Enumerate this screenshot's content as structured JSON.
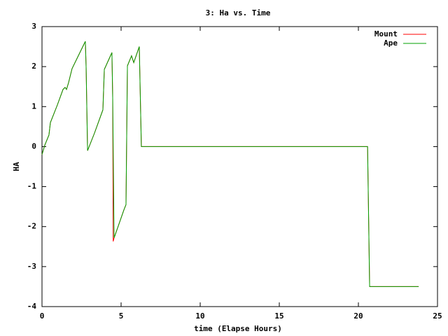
{
  "chart_data": {
    "type": "line",
    "title": "3: Ha vs. Time",
    "xlabel": "time (Elapse Hours)",
    "ylabel": "HA",
    "xlim": [
      0,
      25
    ],
    "xticks": [
      0,
      5,
      10,
      15,
      20,
      25
    ],
    "ylim": [
      -4,
      3
    ],
    "yticks": [
      -4,
      -3,
      -2,
      -1,
      0,
      1,
      2,
      3
    ],
    "legend": "upper right",
    "series": [
      {
        "name": "Mount",
        "color": "#ff0000",
        "x": [
          0,
          0.18,
          0.44,
          0.53,
          0.97,
          1.33,
          1.46,
          1.55,
          1.68,
          1.9,
          2.74,
          2.79,
          2.88,
          3.32,
          3.85,
          3.94,
          4.42,
          4.47,
          4.5,
          4.56,
          5.18,
          5.31,
          5.4,
          5.66,
          5.8,
          6.15,
          6.28,
          20.58,
          20.71,
          23.81
        ],
        "values": [
          -0.2,
          0.04,
          0.29,
          0.6,
          1.04,
          1.43,
          1.48,
          1.43,
          1.6,
          1.95,
          2.63,
          1.97,
          -0.1,
          0.34,
          0.92,
          1.93,
          2.35,
          1.2,
          -2.37,
          -2.28,
          -1.58,
          -1.45,
          2.02,
          2.27,
          2.1,
          2.5,
          0,
          0,
          -3.5,
          -3.5
        ]
      },
      {
        "name": "Ape",
        "color": "#00a000",
        "x": [
          0,
          0.18,
          0.44,
          0.53,
          0.97,
          1.33,
          1.46,
          1.55,
          1.68,
          1.9,
          2.74,
          2.79,
          2.88,
          3.32,
          3.85,
          3.94,
          4.42,
          4.47,
          4.53,
          4.56,
          5.18,
          5.31,
          5.4,
          5.66,
          5.8,
          6.15,
          6.28,
          20.58,
          20.71,
          23.81
        ],
        "values": [
          -0.2,
          0.04,
          0.29,
          0.6,
          1.04,
          1.43,
          1.48,
          1.43,
          1.6,
          1.95,
          2.63,
          1.97,
          -0.1,
          0.34,
          0.92,
          1.93,
          2.35,
          1.2,
          -1.2,
          -2.28,
          -1.58,
          -1.45,
          2.02,
          2.27,
          2.1,
          2.5,
          0,
          0,
          -3.5,
          -3.5
        ]
      }
    ]
  }
}
